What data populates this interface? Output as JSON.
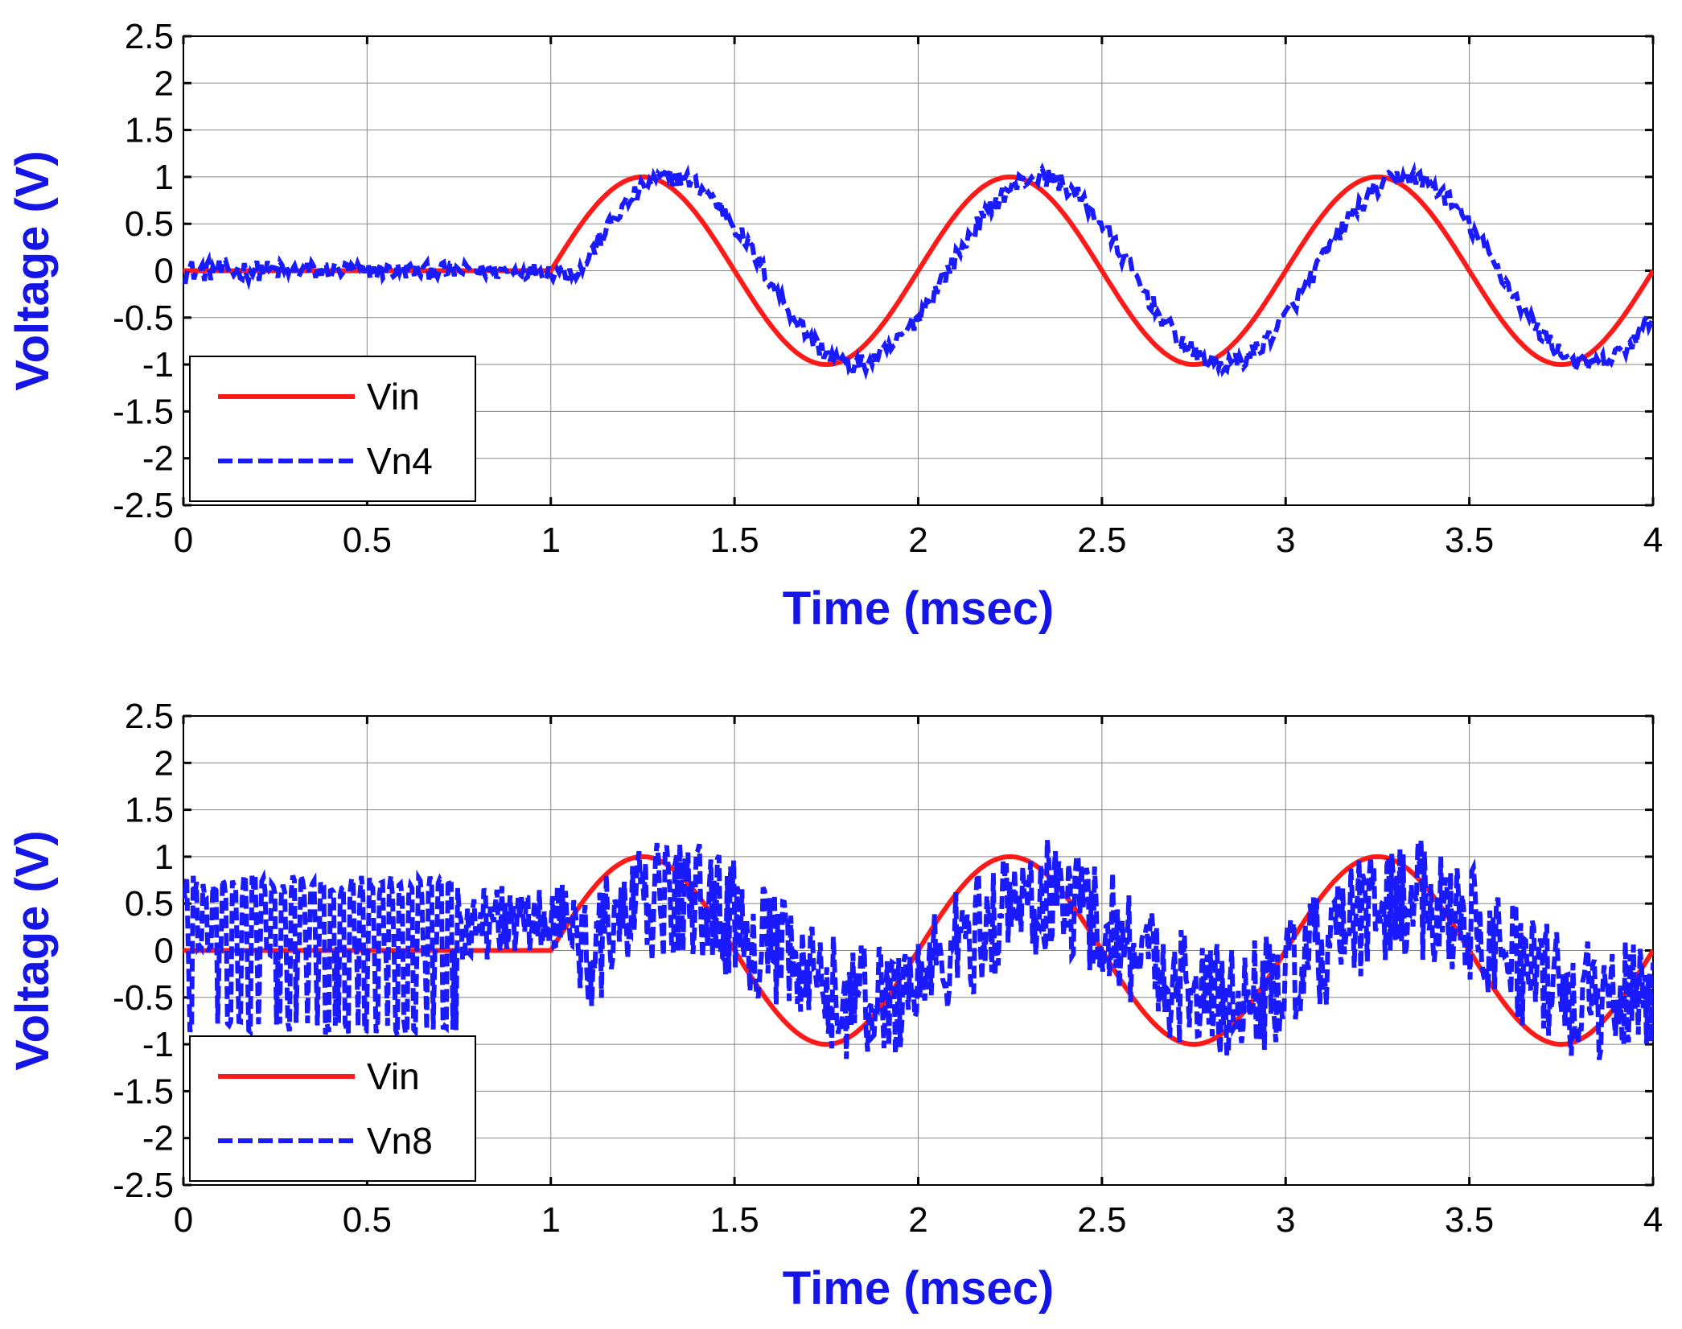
{
  "chart_data": [
    {
      "type": "line",
      "xlabel": "Time (msec)",
      "ylabel": "Voltage (V)",
      "xlim": [
        0,
        4
      ],
      "ylim": [
        -2.5,
        2.5
      ],
      "xticks": [
        0,
        0.5,
        1,
        1.5,
        2,
        2.5,
        3,
        3.5,
        4
      ],
      "yticks": [
        2.5,
        2,
        1.5,
        1,
        0.5,
        0,
        -0.5,
        -1,
        -1.5,
        -2,
        -2.5
      ],
      "grid": true,
      "legend_position": "bottom-left",
      "series": [
        {
          "name": "Vin",
          "style": "solid",
          "color": "#ff1a1a",
          "description": "0 V until 1 ms, then 1 V amplitude 1 kHz sine starting at 1 ms",
          "x": [
            0,
            1.0,
            1.25,
            1.75,
            2.25,
            2.75,
            3.25,
            3.75,
            4.0
          ],
          "y": [
            0,
            0,
            1,
            -1,
            1,
            -1,
            1,
            -1,
            0
          ]
        },
        {
          "name": "Vn4",
          "style": "dashed",
          "color": "#1a1aff",
          "description": "Noisy follower of Vin lagging ~0.08 ms; ripple ~±0.1 V",
          "x": [
            0,
            0.5,
            1.0,
            1.33,
            1.83,
            2.33,
            2.83,
            3.33,
            3.83,
            4.0
          ],
          "y": [
            0,
            0,
            0,
            1,
            -1,
            1,
            -1,
            1,
            -1,
            -0.4
          ]
        }
      ]
    },
    {
      "type": "line",
      "xlabel": "Time (msec)",
      "ylabel": "Voltage (V)",
      "xlim": [
        0,
        4
      ],
      "ylim": [
        -2.5,
        2.5
      ],
      "xticks": [
        0,
        0.5,
        1,
        1.5,
        2,
        2.5,
        3,
        3.5,
        4
      ],
      "yticks": [
        2.5,
        2,
        1.5,
        1,
        0.5,
        0,
        -0.5,
        -1,
        -1.5,
        -2,
        -2.5
      ],
      "grid": true,
      "legend_position": "bottom-left",
      "series": [
        {
          "name": "Vin",
          "style": "solid",
          "color": "#ff1a1a",
          "description": "0 V until 1 ms, then 1 V amplitude 1 kHz sine starting at 1 ms",
          "x": [
            0,
            1.0,
            1.25,
            1.75,
            2.25,
            2.75,
            3.25,
            3.75,
            4.0
          ],
          "y": [
            0,
            0,
            1,
            -1,
            1,
            -1,
            1,
            -1,
            0
          ]
        },
        {
          "name": "Vn8",
          "style": "dashed",
          "color": "#1a1aff",
          "description": "Heavily noisy signal: before 1 ms oscillates between ~-0.9 and ~0.8 V; after 1 ms loosely follows Vin with ±0.6 V noise, peaks about ±1.1 V",
          "x": [
            0,
            0.75,
            1.0,
            1.35,
            1.85,
            2.35,
            2.8,
            3.3,
            3.8,
            4.0
          ],
          "y": [
            0.8,
            -0.9,
            0.5,
            1.15,
            -1.15,
            1.1,
            -1.2,
            1.1,
            -1.1,
            -0.3
          ]
        }
      ]
    }
  ]
}
